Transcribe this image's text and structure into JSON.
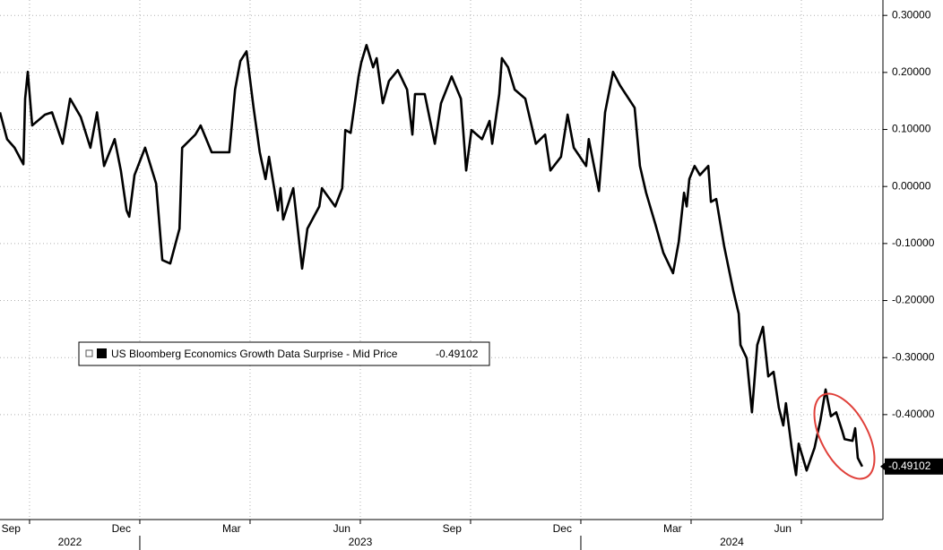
{
  "chart_data": {
    "type": "line",
    "x": [
      2022.683,
      2022.699,
      2022.716,
      2022.736,
      2022.74,
      2022.746,
      2022.756,
      2022.785,
      2022.801,
      2022.825,
      2022.842,
      2022.866,
      2022.888,
      2022.903,
      2022.919,
      2022.943,
      2022.957,
      2022.97,
      2022.976,
      2022.988,
      2023.012,
      2023.037,
      2023.051,
      2023.069,
      2023.09,
      2023.096,
      2023.126,
      2023.138,
      2023.163,
      2023.203,
      2023.216,
      2023.228,
      2023.242,
      2023.258,
      2023.272,
      2023.285,
      2023.293,
      2023.313,
      2023.319,
      2023.325,
      2023.348,
      2023.368,
      2023.38,
      2023.407,
      2023.413,
      2023.443,
      2023.459,
      2023.466,
      2023.478,
      2023.496,
      2023.502,
      2023.514,
      2023.529,
      2023.537,
      2023.551,
      2023.565,
      2023.585,
      2023.606,
      2023.618,
      2023.624,
      2023.646,
      2023.669,
      2023.683,
      2023.707,
      2023.728,
      2023.74,
      2023.752,
      2023.776,
      2023.793,
      2023.799,
      2023.815,
      2023.821,
      2023.835,
      2023.85,
      2023.874,
      2023.898,
      2023.919,
      2023.931,
      2023.955,
      2023.97,
      2023.984,
      2024.012,
      2024.018,
      2024.041,
      2024.055,
      2024.073,
      2024.089,
      2024.122,
      2024.134,
      2024.148,
      2024.169,
      2024.187,
      2024.209,
      2024.222,
      2024.234,
      2024.24,
      2024.246,
      2024.258,
      2024.27,
      2024.289,
      2024.295,
      2024.307,
      2024.325,
      2024.346,
      2024.358,
      2024.362,
      2024.376,
      2024.388,
      2024.4,
      2024.413,
      2024.425,
      2024.437,
      2024.449,
      2024.459,
      2024.465,
      2024.478,
      2024.488,
      2024.494,
      2024.512,
      2024.53,
      2024.543,
      2024.555,
      2024.567,
      2024.579,
      2024.592,
      2024.598,
      2024.616,
      2024.622,
      2024.628,
      2024.638
    ],
    "series": [
      {
        "name": "US Bloomberg Economics Growth Data Surprise - Mid Price",
        "color": "#000000",
        "values": [
          0.13,
          0.083,
          0.068,
          0.039,
          0.154,
          0.201,
          0.107,
          0.126,
          0.13,
          0.075,
          0.154,
          0.122,
          0.068,
          0.13,
          0.036,
          0.083,
          0.028,
          -0.042,
          -0.053,
          0.02,
          0.068,
          0.005,
          -0.129,
          -0.135,
          -0.074,
          0.068,
          0.091,
          0.107,
          0.06,
          0.06,
          0.17,
          0.22,
          0.237,
          0.138,
          0.06,
          0.013,
          0.052,
          -0.042,
          -0.003,
          -0.058,
          -0.003,
          -0.144,
          -0.074,
          -0.035,
          -0.003,
          -0.035,
          -0.003,
          0.099,
          0.094,
          0.193,
          0.217,
          0.248,
          0.209,
          0.225,
          0.146,
          0.185,
          0.204,
          0.17,
          0.091,
          0.162,
          0.162,
          0.075,
          0.146,
          0.193,
          0.154,
          0.028,
          0.099,
          0.083,
          0.115,
          0.075,
          0.162,
          0.225,
          0.209,
          0.17,
          0.154,
          0.075,
          0.091,
          0.028,
          0.052,
          0.126,
          0.068,
          0.036,
          0.083,
          -0.008,
          0.13,
          0.201,
          0.177,
          0.138,
          0.036,
          -0.011,
          -0.066,
          -0.116,
          -0.152,
          -0.097,
          -0.011,
          -0.035,
          0.013,
          0.036,
          0.02,
          0.036,
          -0.027,
          -0.022,
          -0.105,
          -0.184,
          -0.223,
          -0.278,
          -0.301,
          -0.396,
          -0.278,
          -0.246,
          -0.333,
          -0.325,
          -0.388,
          -0.419,
          -0.38,
          -0.458,
          -0.506,
          -0.451,
          -0.498,
          -0.458,
          -0.411,
          -0.356,
          -0.403,
          -0.396,
          -0.427,
          -0.443,
          -0.446,
          -0.424,
          -0.476,
          -0.49102
        ]
      }
    ],
    "xlim": [
      2022.683,
      2024.685
    ],
    "xticks": [
      {
        "value": 2022.708,
        "label": "Sep"
      },
      {
        "value": 2022.958,
        "label": "Dec"
      },
      {
        "value": 2023.208,
        "label": "Mar"
      },
      {
        "value": 2023.458,
        "label": "Jun"
      },
      {
        "value": 2023.708,
        "label": "Sep"
      },
      {
        "value": 2023.958,
        "label": "Dec"
      },
      {
        "value": 2024.208,
        "label": "Mar"
      },
      {
        "value": 2024.458,
        "label": "Jun"
      }
    ],
    "xgrid": [
      2022.75,
      2023.0,
      2023.25,
      2023.5,
      2023.75,
      2024.0,
      2024.25,
      2024.5
    ],
    "year_labels": [
      "2022",
      "2023",
      "2024"
    ],
    "year_breaks": [
      2023,
      2024
    ],
    "ylim": [
      -0.584,
      0.327
    ],
    "yticks": [
      {
        "value": 0.3,
        "label": "0.30000"
      },
      {
        "value": 0.2,
        "label": "0.20000"
      },
      {
        "value": 0.1,
        "label": "0.10000"
      },
      {
        "value": 0,
        "label": "0.00000"
      },
      {
        "value": -0.1,
        "label": "-0.10000"
      },
      {
        "value": -0.2,
        "label": "-0.20000"
      },
      {
        "value": -0.3,
        "label": "-0.30000"
      },
      {
        "value": -0.4,
        "label": "-0.40000"
      }
    ],
    "grid": true
  }
}
